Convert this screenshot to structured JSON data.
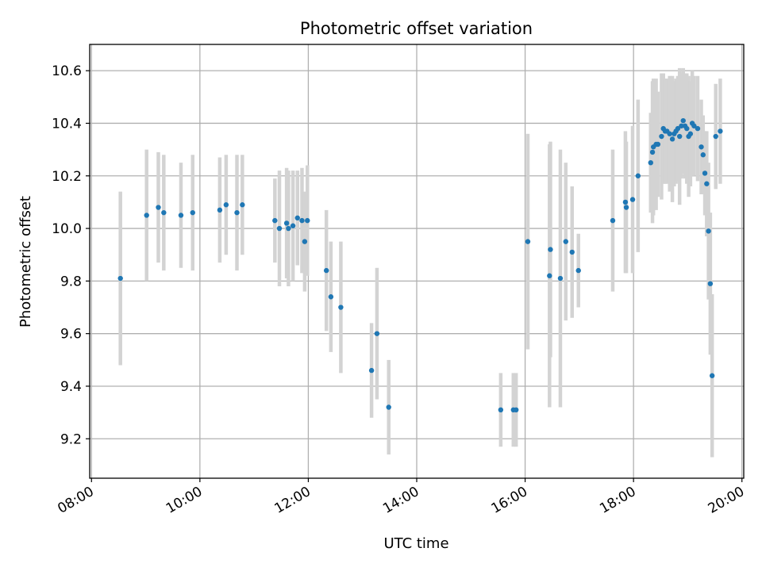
{
  "chart_data": {
    "type": "scatter",
    "title": "Photometric offset variation",
    "xlabel": "UTC time",
    "ylabel": "Photometric offset",
    "x_ticks": [
      "08:00",
      "10:00",
      "12:00",
      "14:00",
      "16:00",
      "18:00",
      "20:00"
    ],
    "y_ticks": [
      "9.2",
      "9.4",
      "9.6",
      "9.8",
      "10.0",
      "10.2",
      "10.4",
      "10.6"
    ],
    "xlim": [
      "07:58",
      "20:02"
    ],
    "ylim": [
      9.05,
      10.7
    ],
    "grid": true,
    "x_axis_type": "time",
    "colors": {
      "point": "#1f77b4",
      "errorbar": "#d3d3d3",
      "grid": "#b0b0b0"
    },
    "series": [
      {
        "x": [
          "08:32",
          "09:01",
          "09:14",
          "09:20",
          "09:39",
          "09:52",
          "10:22",
          "10:29",
          "10:41",
          "10:47",
          "11:23",
          "11:28",
          "11:36",
          "11:38",
          "11:43",
          "11:48",
          "11:53",
          "11:56",
          "11:59",
          "12:20",
          "12:25",
          "12:36",
          "13:10",
          "13:16",
          "13:29",
          "15:33",
          "15:47",
          "15:50",
          "16:03",
          "16:27",
          "16:28",
          "16:39",
          "16:45",
          "16:52",
          "16:59",
          "17:37",
          "17:51",
          "17:52",
          "17:59",
          "18:05",
          "18:19",
          "18:21",
          "18:22",
          "18:25",
          "18:27",
          "18:31",
          "18:33",
          "18:35",
          "18:37",
          "18:40",
          "18:43",
          "18:45",
          "18:47",
          "18:49",
          "18:51",
          "18:53",
          "18:55",
          "18:57",
          "18:59",
          "19:01",
          "19:03",
          "19:05",
          "19:07",
          "19:11",
          "19:15",
          "19:17",
          "19:19",
          "19:21",
          "19:23",
          "19:25",
          "19:27",
          "19:31",
          "19:36"
        ],
        "y": [
          9.81,
          10.05,
          10.08,
          10.06,
          10.05,
          10.06,
          10.07,
          10.09,
          10.06,
          10.09,
          10.03,
          10.0,
          10.02,
          10.0,
          10.01,
          10.04,
          10.03,
          9.95,
          10.03,
          9.84,
          9.74,
          9.7,
          9.46,
          9.6,
          9.32,
          9.31,
          9.31,
          9.31,
          9.95,
          9.82,
          9.92,
          9.81,
          9.95,
          9.91,
          9.84,
          10.03,
          10.1,
          10.08,
          10.11,
          10.2,
          10.25,
          10.29,
          10.31,
          10.32,
          10.32,
          10.35,
          10.38,
          10.37,
          10.37,
          10.36,
          10.34,
          10.36,
          10.37,
          10.38,
          10.35,
          10.39,
          10.41,
          10.39,
          10.38,
          10.35,
          10.36,
          10.4,
          10.39,
          10.38,
          10.31,
          10.28,
          10.21,
          10.17,
          9.99,
          9.79,
          9.44,
          10.35,
          10.37
        ],
        "yerr": [
          0.33,
          0.25,
          0.21,
          0.22,
          0.2,
          0.22,
          0.2,
          0.19,
          0.22,
          0.19,
          0.16,
          0.22,
          0.21,
          0.22,
          0.21,
          0.18,
          0.2,
          0.19,
          0.21,
          0.23,
          0.21,
          0.25,
          0.18,
          0.25,
          0.18,
          0.14,
          0.14,
          0.14,
          0.41,
          0.5,
          0.41,
          0.49,
          0.3,
          0.25,
          0.14,
          0.27,
          0.27,
          0.25,
          0.28,
          0.29,
          0.19,
          0.27,
          0.26,
          0.25,
          0.2,
          0.24,
          0.21,
          0.2,
          0.2,
          0.22,
          0.24,
          0.2,
          0.2,
          0.2,
          0.26,
          0.2,
          0.2,
          0.2,
          0.21,
          0.23,
          0.2,
          0.2,
          0.19,
          0.2,
          0.18,
          0.15,
          0.16,
          0.2,
          0.26,
          0.27,
          0.31,
          0.2,
          0.2
        ]
      }
    ]
  }
}
